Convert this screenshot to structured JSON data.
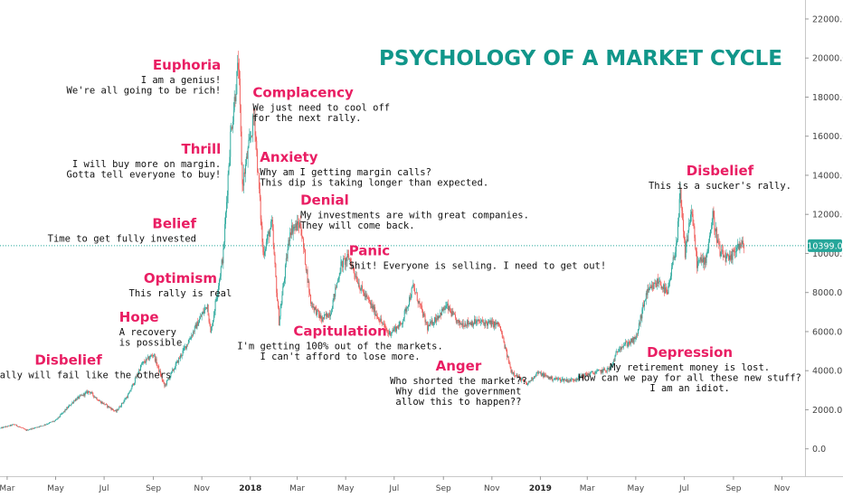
{
  "chart_data": {
    "type": "candlestick",
    "title": "PSYCHOLOGY OF A MARKET CYCLE",
    "y_axis": {
      "range": [
        -800,
        22600
      ],
      "ticks": [
        "0.0",
        "2000.0",
        "4000.0",
        "6000.0",
        "8000.0",
        "10000.0",
        "12000.0",
        "14000.0",
        "16000.0",
        "18000.0",
        "20000.0",
        "22000.0"
      ],
      "position": "right",
      "grid": false
    },
    "x_axis": {
      "start": "2017-02-20",
      "end": "2019-11-30",
      "ticks": [
        {
          "date": "2017-03-01",
          "label": "Mar"
        },
        {
          "date": "2017-05-01",
          "label": "May"
        },
        {
          "date": "2017-07-01",
          "label": "Jul"
        },
        {
          "date": "2017-09-01",
          "label": "Sep"
        },
        {
          "date": "2017-11-01",
          "label": "Nov"
        },
        {
          "date": "2018-01-01",
          "label": "2018",
          "strong": true
        },
        {
          "date": "2018-03-01",
          "label": "Mar"
        },
        {
          "date": "2018-05-01",
          "label": "May"
        },
        {
          "date": "2018-07-01",
          "label": "Jul"
        },
        {
          "date": "2018-09-01",
          "label": "Sep"
        },
        {
          "date": "2018-11-01",
          "label": "Nov"
        },
        {
          "date": "2019-01-01",
          "label": "2019",
          "strong": true
        },
        {
          "date": "2019-03-01",
          "label": "Mar"
        },
        {
          "date": "2019-05-01",
          "label": "May"
        },
        {
          "date": "2019-07-01",
          "label": "Jul"
        },
        {
          "date": "2019-09-01",
          "label": "Sep"
        },
        {
          "date": "2019-11-01",
          "label": "Nov"
        }
      ]
    },
    "current_price": {
      "value": 10399,
      "label": "10399.0",
      "color": "#26a69a"
    },
    "colors": {
      "up": "#26a69a",
      "down": "#ef5350",
      "stage": "#e91e63",
      "title": "#11968a",
      "text": "#111111"
    },
    "price_path": [
      [
        "2017-02-20",
        1050
      ],
      [
        "2017-03-10",
        1250
      ],
      [
        "2017-03-25",
        950
      ],
      [
        "2017-04-15",
        1200
      ],
      [
        "2017-05-01",
        1450
      ],
      [
        "2017-05-25",
        2500
      ],
      [
        "2017-06-12",
        2950
      ],
      [
        "2017-06-25",
        2450
      ],
      [
        "2017-07-16",
        1900
      ],
      [
        "2017-08-01",
        2800
      ],
      [
        "2017-08-17",
        4300
      ],
      [
        "2017-09-01",
        4850
      ],
      [
        "2017-09-15",
        3200
      ],
      [
        "2017-09-30",
        4350
      ],
      [
        "2017-10-20",
        5900
      ],
      [
        "2017-11-08",
        7400
      ],
      [
        "2017-11-12",
        5900
      ],
      [
        "2017-11-28",
        10000
      ],
      [
        "2017-12-07",
        16000
      ],
      [
        "2017-12-17",
        19700
      ],
      [
        "2017-12-22",
        13500
      ],
      [
        "2018-01-06",
        17100
      ],
      [
        "2018-01-17",
        10000
      ],
      [
        "2018-01-28",
        11500
      ],
      [
        "2018-02-06",
        6500
      ],
      [
        "2018-02-20",
        11200
      ],
      [
        "2018-03-05",
        11500
      ],
      [
        "2018-03-18",
        7500
      ],
      [
        "2018-04-01",
        6600
      ],
      [
        "2018-04-12",
        7000
      ],
      [
        "2018-04-25",
        9400
      ],
      [
        "2018-05-05",
        9800
      ],
      [
        "2018-05-20",
        8200
      ],
      [
        "2018-06-10",
        6800
      ],
      [
        "2018-06-24",
        5900
      ],
      [
        "2018-07-10",
        6400
      ],
      [
        "2018-07-25",
        8300
      ],
      [
        "2018-08-12",
        6200
      ],
      [
        "2018-09-05",
        7300
      ],
      [
        "2018-09-20",
        6400
      ],
      [
        "2018-10-15",
        6500
      ],
      [
        "2018-11-10",
        6350
      ],
      [
        "2018-11-25",
        4000
      ],
      [
        "2018-12-15",
        3300
      ],
      [
        "2018-12-28",
        3900
      ],
      [
        "2019-01-15",
        3600
      ],
      [
        "2019-02-08",
        3500
      ],
      [
        "2019-02-28",
        3800
      ],
      [
        "2019-03-30",
        4100
      ],
      [
        "2019-04-10",
        5200
      ],
      [
        "2019-05-01",
        5600
      ],
      [
        "2019-05-14",
        7900
      ],
      [
        "2019-05-30",
        8600
      ],
      [
        "2019-06-10",
        7900
      ],
      [
        "2019-06-22",
        10800
      ],
      [
        "2019-06-26",
        13000
      ],
      [
        "2019-07-02",
        10000
      ],
      [
        "2019-07-10",
        12300
      ],
      [
        "2019-07-17",
        9500
      ],
      [
        "2019-07-28",
        9700
      ],
      [
        "2019-08-06",
        11900
      ],
      [
        "2019-08-15",
        10000
      ],
      [
        "2019-08-28",
        9600
      ],
      [
        "2019-09-05",
        10400
      ],
      [
        "2019-09-14",
        10399
      ]
    ],
    "stages": [
      {
        "name": "Disbelief",
        "quote": [
          "This rally will fail like the others"
        ],
        "date": "2017-05-17",
        "price": 4300,
        "align": "middle"
      },
      {
        "name": "Hope",
        "quote": [
          "A recovery",
          "is possible"
        ],
        "date": "2017-07-20",
        "price": 6500,
        "align": "start"
      },
      {
        "name": "Optimism",
        "quote": [
          "This rally is real"
        ],
        "date": "2017-10-05",
        "price": 8500,
        "align": "middle"
      },
      {
        "name": "Belief",
        "quote": [
          "Time to get fully invested"
        ],
        "date": "2017-10-25",
        "price": 11300,
        "align": "end"
      },
      {
        "name": "Thrill",
        "quote": [
          "I will buy more on margin.",
          "Gotta tell everyone to buy!"
        ],
        "date": "2017-11-25",
        "price": 15100,
        "align": "end"
      },
      {
        "name": "Euphoria",
        "quote": [
          "I am a genius!",
          "We're all going to be rich!"
        ],
        "date": "2017-11-25",
        "price": 19400,
        "align": "end"
      },
      {
        "name": "Complacency",
        "quote": [
          "We just need to cool off",
          "for the next rally."
        ],
        "date": "2018-01-04",
        "price": 18000,
        "align": "start"
      },
      {
        "name": "Anxiety",
        "quote": [
          "Why am I getting margin calls?",
          "This dip is taking longer than expected."
        ],
        "date": "2018-01-13",
        "price": 14700,
        "align": "start"
      },
      {
        "name": "Denial",
        "quote": [
          "My investments are with great companies.",
          "They will come back."
        ],
        "date": "2018-03-05",
        "price": 12500,
        "align": "start"
      },
      {
        "name": "Panic",
        "quote": [
          "Shit! Everyone is selling. I need to get out!"
        ],
        "date": "2018-05-05",
        "price": 9900,
        "align": "start"
      },
      {
        "name": "Capitulation",
        "quote": [
          "I'm getting 100% out of the markets.",
          "I can't afford to lose more."
        ],
        "date": "2018-04-24",
        "price": 5800,
        "align": "middle"
      },
      {
        "name": "Anger",
        "quote": [
          "Who shorted the market??",
          "Why did the government",
          "allow this to happen??"
        ],
        "date": "2018-09-20",
        "price": 4000,
        "align": "middle"
      },
      {
        "name": "Depression",
        "quote": [
          "My retirement money is lost.",
          "How can we pay for all these new stuff?",
          "I am an idiot."
        ],
        "date": "2019-07-08",
        "price": 4700,
        "align": "middle"
      },
      {
        "name": "Disbelief",
        "quote": [
          "This is a sucker's rally."
        ],
        "date": "2019-08-15",
        "price": 14000,
        "align": "middle"
      }
    ]
  }
}
